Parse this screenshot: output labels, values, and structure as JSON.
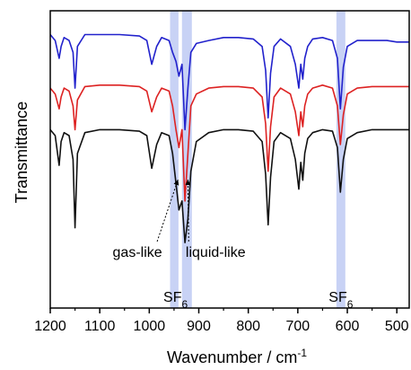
{
  "chart_data": {
    "type": "line",
    "title": "",
    "xlabel": "Wavenumber / cm",
    "xlabel_superscript": "-1",
    "ylabel": "Transmittance",
    "xlim": [
      1200,
      475
    ],
    "x_reversed": true,
    "y_ticks_shown": false,
    "xticks": [
      1200,
      1100,
      1000,
      900,
      800,
      700,
      600,
      500
    ],
    "grid": false,
    "legend": "none",
    "shaded_bands": [
      {
        "from": 958,
        "to": 941,
        "color": "#c8d2f5"
      },
      {
        "from": 934,
        "to": 914,
        "color": "#c8d2f5"
      },
      {
        "from": 622,
        "to": 604,
        "color": "#c8d2f5"
      }
    ],
    "band_labels": [
      {
        "base": "SF",
        "sub": "6",
        "x": 947
      },
      {
        "base": "SF",
        "sub": "6",
        "x": 613
      }
    ],
    "annotations": [
      {
        "text": "gas-like",
        "x": 1024,
        "arrow_to_x": 942
      },
      {
        "text": "liquid-like",
        "x": 866,
        "arrow_to_x": 922
      }
    ],
    "series": [
      {
        "color": "#2222cc",
        "x": [
          1200,
          1190,
          1182,
          1178,
          1172,
          1162,
          1154,
          1150,
          1145,
          1130,
          1100,
          1060,
          1020,
          1005,
          995,
          985,
          975,
          960,
          953,
          946,
          940,
          934,
          928,
          922,
          916,
          905,
          880,
          850,
          820,
          790,
          772,
          765,
          760,
          755,
          748,
          735,
          715,
          705,
          698,
          694,
          690,
          686,
          680,
          670,
          650,
          630,
          620,
          614,
          608,
          600,
          580,
          550,
          520,
          500,
          475
        ],
        "y": [
          0.92,
          0.9,
          0.84,
          0.88,
          0.91,
          0.9,
          0.86,
          0.74,
          0.88,
          0.92,
          0.92,
          0.92,
          0.915,
          0.9,
          0.82,
          0.88,
          0.91,
          0.9,
          0.86,
          0.83,
          0.78,
          0.82,
          0.6,
          0.74,
          0.86,
          0.89,
          0.9,
          0.91,
          0.91,
          0.905,
          0.88,
          0.8,
          0.64,
          0.79,
          0.88,
          0.905,
          0.88,
          0.82,
          0.74,
          0.82,
          0.77,
          0.84,
          0.88,
          0.905,
          0.91,
          0.9,
          0.84,
          0.67,
          0.81,
          0.88,
          0.9,
          0.9,
          0.9,
          0.895,
          0.895
        ]
      },
      {
        "color": "#dd2222",
        "x": [
          1200,
          1190,
          1182,
          1178,
          1172,
          1162,
          1154,
          1150,
          1145,
          1130,
          1100,
          1060,
          1020,
          1005,
          995,
          985,
          975,
          960,
          953,
          946,
          940,
          934,
          928,
          922,
          916,
          905,
          880,
          850,
          820,
          790,
          772,
          765,
          760,
          755,
          748,
          735,
          715,
          705,
          698,
          694,
          690,
          686,
          680,
          670,
          650,
          630,
          620,
          614,
          608,
          600,
          580,
          550,
          520,
          500,
          475
        ],
        "y": [
          0.74,
          0.72,
          0.67,
          0.71,
          0.74,
          0.73,
          0.68,
          0.6,
          0.7,
          0.745,
          0.75,
          0.75,
          0.745,
          0.73,
          0.66,
          0.71,
          0.74,
          0.73,
          0.68,
          0.6,
          0.54,
          0.6,
          0.36,
          0.52,
          0.68,
          0.72,
          0.74,
          0.745,
          0.745,
          0.74,
          0.71,
          0.62,
          0.46,
          0.61,
          0.71,
          0.74,
          0.72,
          0.66,
          0.58,
          0.66,
          0.61,
          0.68,
          0.72,
          0.74,
          0.75,
          0.74,
          0.68,
          0.55,
          0.65,
          0.72,
          0.74,
          0.745,
          0.745,
          0.745,
          0.745
        ]
      },
      {
        "color": "#111111",
        "x": [
          1200,
          1190,
          1182,
          1178,
          1172,
          1162,
          1154,
          1150,
          1145,
          1130,
          1100,
          1060,
          1020,
          1005,
          995,
          985,
          975,
          960,
          953,
          946,
          940,
          934,
          928,
          922,
          916,
          905,
          880,
          850,
          820,
          790,
          772,
          765,
          760,
          755,
          748,
          735,
          715,
          705,
          698,
          694,
          690,
          686,
          680,
          670,
          650,
          630,
          620,
          614,
          608,
          600,
          580,
          550,
          520,
          500,
          475
        ],
        "y": [
          0.6,
          0.58,
          0.48,
          0.56,
          0.59,
          0.58,
          0.5,
          0.27,
          0.52,
          0.59,
          0.6,
          0.6,
          0.595,
          0.58,
          0.47,
          0.55,
          0.59,
          0.58,
          0.52,
          0.42,
          0.33,
          0.36,
          0.22,
          0.3,
          0.46,
          0.56,
          0.59,
          0.6,
          0.6,
          0.595,
          0.56,
          0.45,
          0.28,
          0.44,
          0.56,
          0.59,
          0.57,
          0.5,
          0.4,
          0.49,
          0.43,
          0.52,
          0.57,
          0.59,
          0.6,
          0.595,
          0.54,
          0.39,
          0.5,
          0.57,
          0.59,
          0.6,
          0.6,
          0.6,
          0.6
        ]
      }
    ]
  }
}
